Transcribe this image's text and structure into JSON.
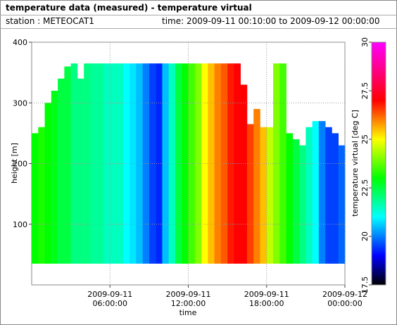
{
  "chart_data": {
    "type": "heatmap",
    "title": "temperature data (measured) - temperature virtual",
    "station": "station : METEOCAT1",
    "period": "time: 2009-09-11 00:10:00 to 2009-09-12 00:00:00",
    "xlabel": "time",
    "ylabel": "height [m]",
    "colorbar_label": "temperature virtual [deg C]",
    "x": [
      0,
      0.5,
      1,
      1.5,
      2,
      2.5,
      3,
      3.5,
      4,
      4.5,
      5,
      5.5,
      6,
      6.5,
      7,
      7.5,
      8,
      8.5,
      9,
      9.5,
      10,
      10.5,
      11,
      11.5,
      12,
      12.5,
      13,
      13.5,
      14,
      14.5,
      15,
      15.5,
      16,
      16.5,
      17,
      17.5,
      18,
      18.5,
      19,
      19.5,
      20,
      20.5,
      21,
      21.5,
      22,
      22.5,
      23,
      23.5
    ],
    "values": [
      23,
      23.2,
      23,
      22.8,
      22.5,
      22.5,
      22,
      22,
      22,
      21.8,
      21.8,
      21.5,
      21.5,
      21.5,
      21,
      20.8,
      20.5,
      20,
      19.5,
      19.3,
      20.5,
      21.5,
      22.5,
      23,
      23.5,
      24,
      25,
      25.5,
      26,
      26.3,
      26.8,
      27,
      27,
      26.5,
      26,
      25.5,
      24.5,
      24,
      23.5,
      23,
      22.5,
      22,
      21.5,
      21,
      20,
      19.5,
      19.5,
      19.8
    ],
    "tops": [
      250,
      260,
      300,
      320,
      340,
      360,
      365,
      340,
      365,
      365,
      365,
      365,
      365,
      365,
      365,
      365,
      365,
      365,
      365,
      365,
      365,
      365,
      365,
      365,
      365,
      365,
      365,
      365,
      365,
      365,
      365,
      365,
      330,
      265,
      290,
      260,
      260,
      365,
      365,
      250,
      240,
      230,
      260,
      270,
      270,
      260,
      250,
      230
    ],
    "data_bottom": 35,
    "xlim": [
      0,
      24
    ],
    "xticks": [
      {
        "value": 6,
        "label": "2009-09-11 06:00:00"
      },
      {
        "value": 12,
        "label": "2009-09-11 12:00:00"
      },
      {
        "value": 18,
        "label": "2009-09-11 18:00:00"
      },
      {
        "value": 24,
        "label": "2009-09-12 00:00:00"
      }
    ],
    "ylim": [
      0,
      400
    ],
    "yticks": [
      100,
      200,
      300,
      400
    ],
    "clim": [
      17.5,
      30
    ],
    "cticks": [
      17.5,
      20,
      22.5,
      25,
      27.5,
      30
    ],
    "colormap": [
      {
        "value": 17.5,
        "color": "#000000"
      },
      {
        "value": 19,
        "color": "#0000ff"
      },
      {
        "value": 21,
        "color": "#00ffff"
      },
      {
        "value": 23,
        "color": "#00ff00"
      },
      {
        "value": 25,
        "color": "#ffff00"
      },
      {
        "value": 27,
        "color": "#ff0000"
      },
      {
        "value": 30,
        "color": "#ff00ff"
      }
    ],
    "grid": true
  }
}
